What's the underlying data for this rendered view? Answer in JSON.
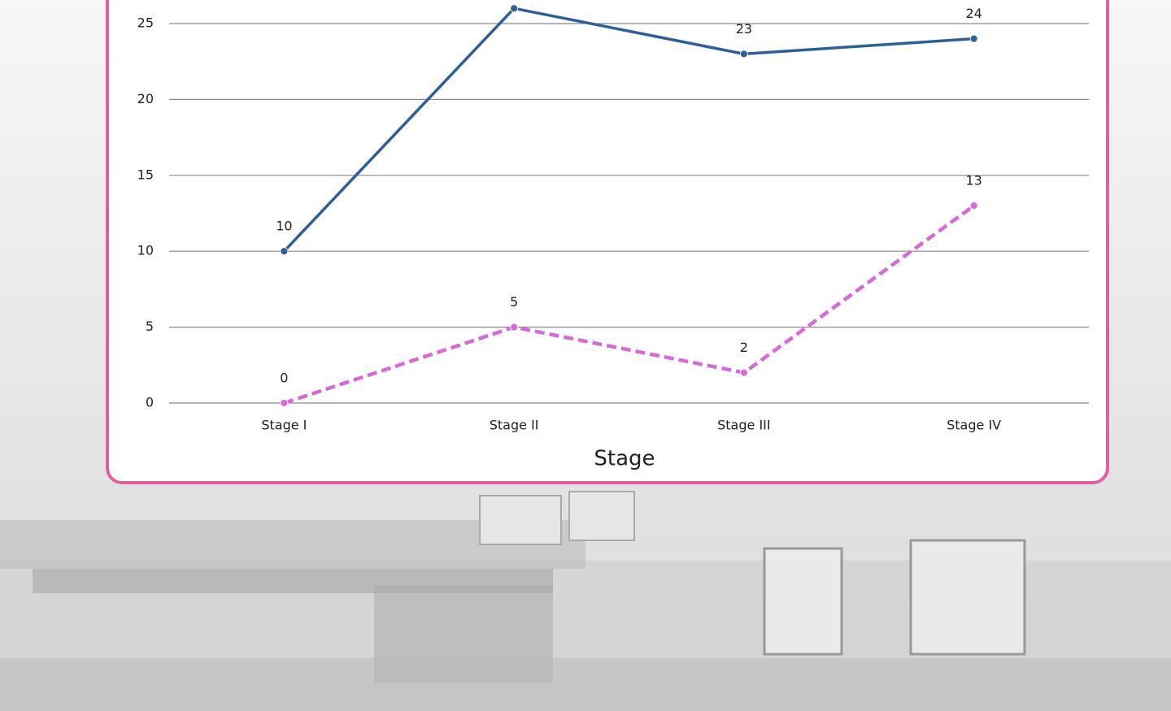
{
  "chart_data": {
    "type": "line",
    "x_label": "Stage",
    "categories": [
      "Stage I",
      "Stage II",
      "Stage III",
      "Stage IV"
    ],
    "series": [
      {
        "color": "#2e5f99",
        "dashed": false,
        "values": [
          10,
          26,
          23,
          24
        ]
      },
      {
        "color": "#d86ad8",
        "dashed": true,
        "values": [
          0,
          5,
          2,
          13
        ]
      }
    ],
    "ylim": [
      0,
      30
    ],
    "yticks": [
      0,
      5,
      10,
      15,
      20,
      25
    ],
    "grid": true,
    "data_labels": true
  }
}
